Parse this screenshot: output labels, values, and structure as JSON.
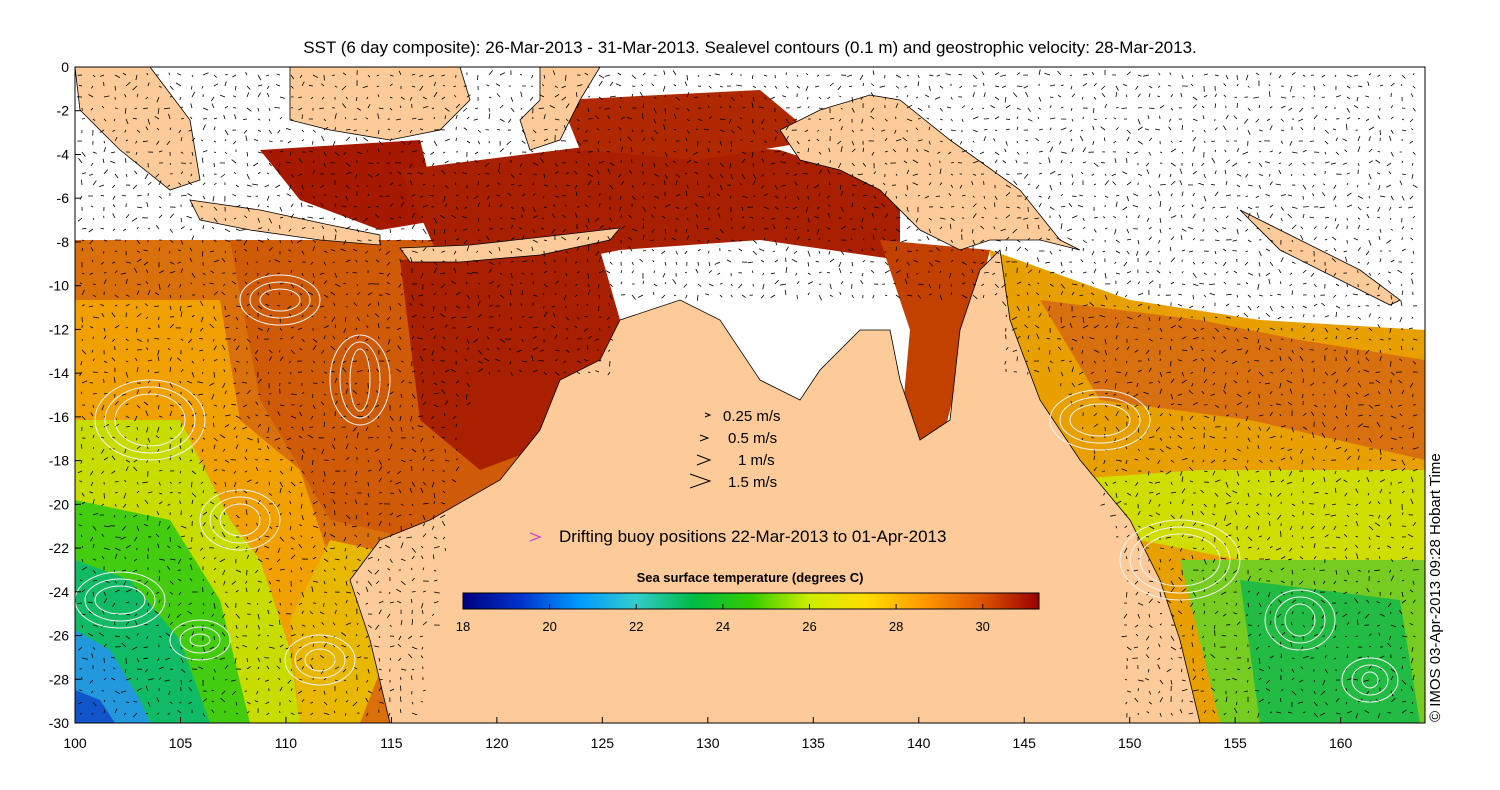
{
  "title": "SST (6 day composite): 26-Mar-2013 - 31-Mar-2013. Sealevel contours (0.1 m) and geostrophic velocity: 28-Mar-2013.",
  "axes": {
    "x_ticks": [
      "100",
      "105",
      "110",
      "115",
      "120",
      "125",
      "130",
      "135",
      "140",
      "145",
      "150",
      "155",
      "160"
    ],
    "y_ticks": [
      "0",
      "-2",
      "-4",
      "-6",
      "-8",
      "-10",
      "-12",
      "-14",
      "-16",
      "-18",
      "-20",
      "-22",
      "-24",
      "-26",
      "-28",
      "-30"
    ],
    "xlim": [
      100,
      164
    ],
    "ylim": [
      -30,
      0
    ]
  },
  "velocity_legend": [
    {
      "label": "0.25 m/s",
      "speed": 0.25
    },
    {
      "label": "0.5 m/s",
      "speed": 0.5
    },
    {
      "label": "1 m/s",
      "speed": 1
    },
    {
      "label": "1.5 m/s",
      "speed": 1.5
    }
  ],
  "buoy_legend": {
    "label": "Drifting buoy positions 22-Mar-2013 to 01-Apr-2013",
    "color": "#cc33cc"
  },
  "colorbar": {
    "title": "Sea surface temperature (degrees C)",
    "ticks": [
      "18",
      "20",
      "22",
      "24",
      "26",
      "28",
      "30"
    ],
    "range": [
      18,
      31.3
    ],
    "colors": [
      "#000080",
      "#0033cc",
      "#0099ff",
      "#33cccc",
      "#00bb44",
      "#33cc00",
      "#ccee00",
      "#ffdd00",
      "#ff9900",
      "#dd5500",
      "#990000"
    ]
  },
  "credit": "© IMOS 03-Apr-2013 09:28 Hobart Time",
  "colors": {
    "land": "#fccb99",
    "no_data": "#ffffff"
  }
}
